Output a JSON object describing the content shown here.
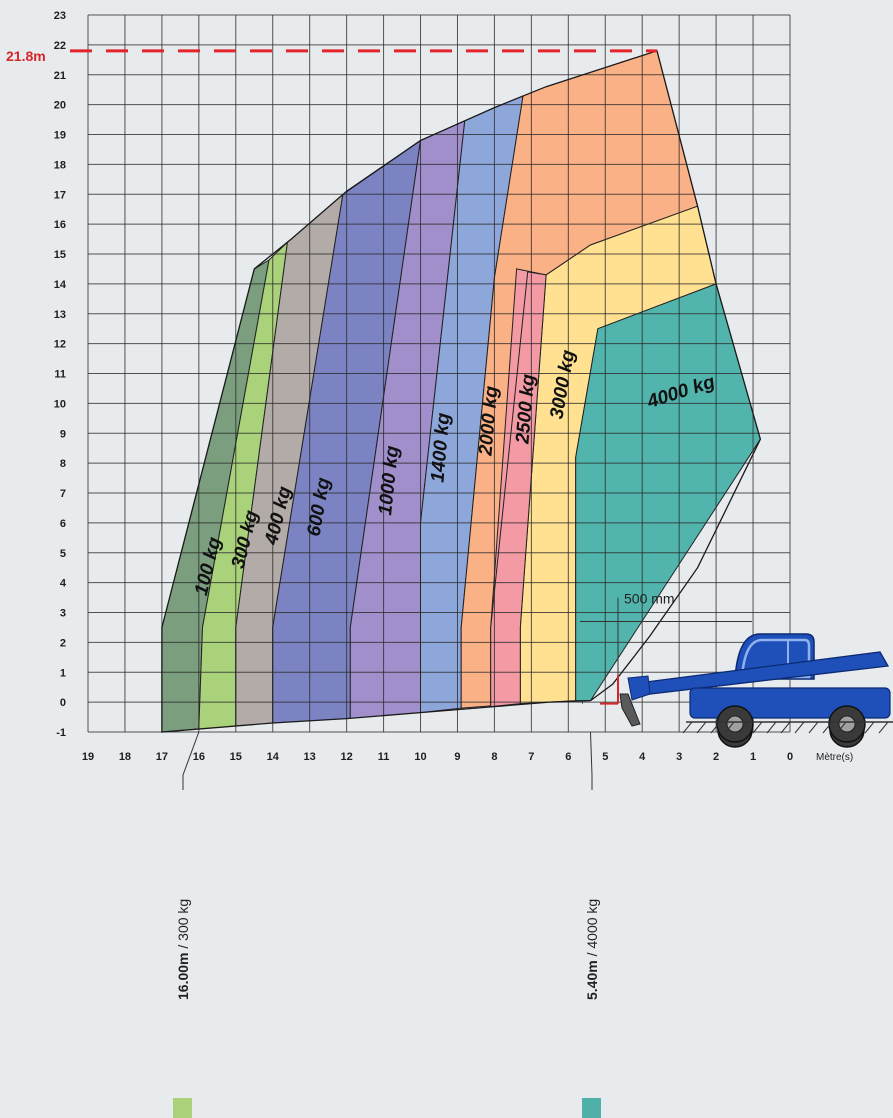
{
  "chart_data": {
    "type": "area",
    "title": "",
    "xlabel": "Mètre(s)",
    "ylabel": "",
    "x_reversed": true,
    "xlim": [
      0,
      19
    ],
    "ylim": [
      -1,
      23
    ],
    "x_ticks": [
      "19",
      "18",
      "17",
      "16",
      "15",
      "14",
      "13",
      "12",
      "11",
      "10",
      "9",
      "8",
      "7",
      "6",
      "5",
      "4",
      "3",
      "2",
      "1",
      "0"
    ],
    "y_ticks": [
      "-1",
      "0",
      "1",
      "2",
      "3",
      "4",
      "5",
      "6",
      "7",
      "8",
      "9",
      "10",
      "11",
      "12",
      "13",
      "14",
      "15",
      "16",
      "17",
      "18",
      "19",
      "20",
      "21",
      "22",
      "23"
    ],
    "grid": true,
    "max_height": {
      "label": "21.8m",
      "value": 21.8,
      "color": "#e2242b"
    },
    "outline": {
      "top": [
        [
          17,
          -1
        ],
        [
          17,
          2.5
        ],
        [
          14.5,
          14.5
        ],
        [
          13.5,
          15.5
        ],
        [
          12,
          17.1
        ],
        [
          10,
          18.8
        ],
        [
          8,
          19.9
        ],
        [
          6.6,
          20.6
        ],
        [
          3.6,
          21.8
        ]
      ],
      "right": [
        [
          3.6,
          21.8
        ],
        [
          2.5,
          16.6
        ],
        [
          2,
          14
        ],
        [
          0.8,
          8.8
        ]
      ],
      "bottom": [
        [
          17,
          -1
        ],
        [
          14,
          -0.7
        ],
        [
          12,
          -0.55
        ],
        [
          10,
          -0.35
        ],
        [
          8,
          -0.15
        ],
        [
          6.5,
          0
        ],
        [
          5.4,
          0.05
        ]
      ]
    },
    "zones": [
      {
        "label": "100 kg",
        "color": "#7a9e7e",
        "outer": [
          [
            17,
            -1
          ],
          [
            17,
            2.5
          ],
          [
            14.5,
            14.5
          ]
        ],
        "inner": [
          [
            14.1,
            14.8
          ],
          [
            15.9,
            2.5
          ],
          [
            16,
            -0.9
          ]
        ]
      },
      {
        "label": "300 kg",
        "color": "#a9d27a",
        "outer": [
          [
            16,
            -0.9
          ],
          [
            15.9,
            2.5
          ],
          [
            14.1,
            14.8
          ]
        ],
        "inner": [
          [
            13.6,
            15.4
          ],
          [
            15,
            2.5
          ],
          [
            15,
            -0.85
          ]
        ]
      },
      {
        "label": "400 kg",
        "color": "#b3aba7",
        "outer": [
          [
            15,
            -0.85
          ],
          [
            15,
            2.5
          ],
          [
            13.6,
            15.4
          ]
        ],
        "inner": [
          [
            12.1,
            17
          ],
          [
            14,
            2.5
          ],
          [
            14,
            -0.7
          ]
        ]
      },
      {
        "label": "600 kg",
        "color": "#7c83c3",
        "outer": [
          [
            14,
            -0.7
          ],
          [
            14,
            2.5
          ],
          [
            12.1,
            17
          ]
        ],
        "inner": [
          [
            10,
            18.8
          ],
          [
            11.9,
            2.5
          ],
          [
            11.9,
            -0.55
          ]
        ]
      },
      {
        "label": "1000 kg",
        "color": "#a08fca",
        "outer": [
          [
            11.9,
            -0.55
          ],
          [
            11.9,
            2.5
          ],
          [
            10,
            18.8
          ]
        ],
        "inner": [
          [
            8.8,
            19.5
          ],
          [
            10,
            6
          ],
          [
            10,
            -0.35
          ]
        ]
      },
      {
        "label": "1400 kg",
        "color": "#8ea7db",
        "outer": [
          [
            10,
            -0.35
          ],
          [
            10,
            6
          ],
          [
            8.8,
            19.5
          ]
        ],
        "inner": [
          [
            7.2,
            20.5
          ],
          [
            8,
            14.2
          ],
          [
            8.9,
            2.5
          ],
          [
            8.9,
            -0.2
          ]
        ]
      },
      {
        "label": "2000 kg",
        "color": "#fbb186",
        "outer": [
          [
            8.9,
            -0.2
          ],
          [
            8.9,
            2.5
          ],
          [
            8,
            14.2
          ],
          [
            7.2,
            20.5
          ],
          [
            3.6,
            21.8
          ],
          [
            2.5,
            16.6
          ]
        ],
        "inner": [
          [
            5.4,
            15.3
          ],
          [
            6.6,
            14.3
          ],
          [
            7.3,
            2.5
          ],
          [
            7.3,
            -0.05
          ]
        ]
      },
      {
        "label": "2500 kg",
        "color": "#f39aa5",
        "outer": [
          [
            8.1,
            -0.15
          ],
          [
            8.1,
            2.5
          ],
          [
            7.3,
            2.5
          ]
        ],
        "inner": []
      },
      {
        "label": "3000 kg",
        "color": "#ffe191",
        "outer": [
          [
            7.3,
            -0.05
          ],
          [
            7.3,
            2.5
          ],
          [
            6.6,
            14.3
          ],
          [
            5.4,
            15.3
          ],
          [
            2.5,
            16.6
          ],
          [
            2,
            14
          ]
        ],
        "inner": [
          [
            5.2,
            12.5
          ],
          [
            5.8,
            8.2
          ],
          [
            5.8,
            0.05
          ]
        ]
      },
      {
        "label": "4000 kg",
        "color": "#52b5ad",
        "outer": [
          [
            5.8,
            0.05
          ],
          [
            5.8,
            8.2
          ],
          [
            5.2,
            12.5
          ],
          [
            2,
            14
          ],
          [
            0.8,
            8.8
          ]
        ],
        "inner": [
          [
            5.4,
            0.05
          ]
        ]
      }
    ],
    "annotations": [
      {
        "text": "500 mm"
      }
    ],
    "references": [
      {
        "value": "16.00m",
        "suffix": " / 300 kg",
        "x": 16,
        "color": "#a9d27a"
      },
      {
        "value": "5.40m",
        "suffix": " / 4000 kg",
        "x": 5.4,
        "color": "#4fb0a8"
      }
    ]
  }
}
